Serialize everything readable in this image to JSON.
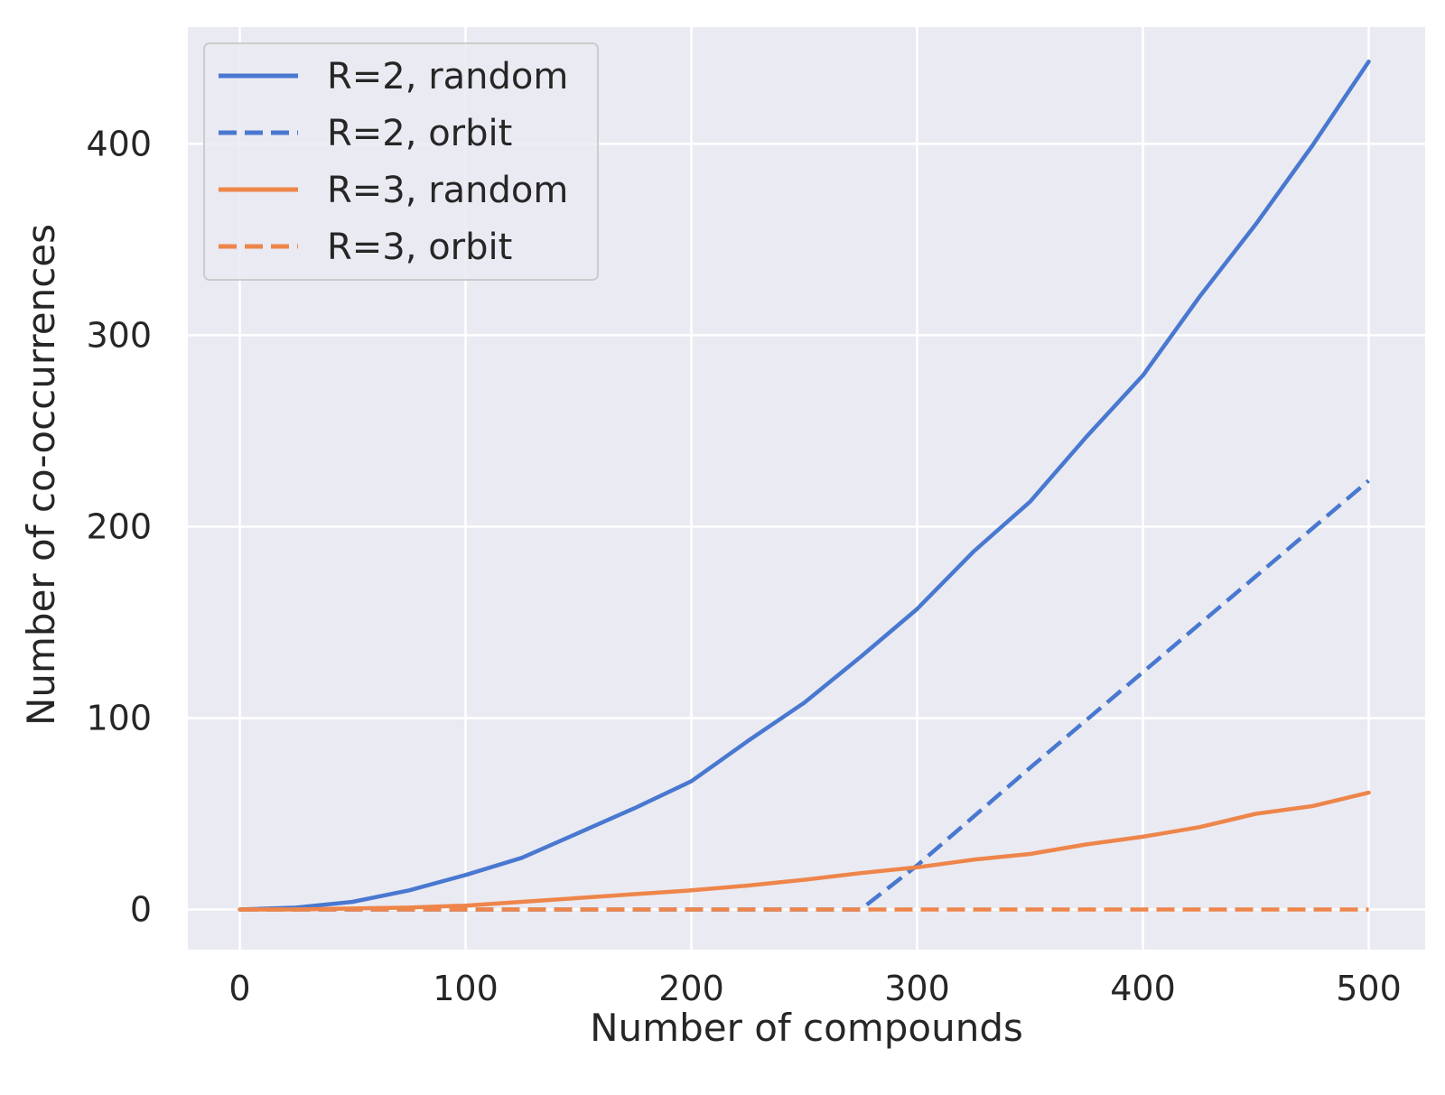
{
  "chart_data": {
    "type": "line",
    "xlabel": "Number of compounds",
    "ylabel": "Number of co-occurrences",
    "xlim": [
      -23,
      525
    ],
    "ylim": [
      -21,
      461
    ],
    "xticks": [
      0,
      100,
      200,
      300,
      400,
      500
    ],
    "yticks": [
      0,
      100,
      200,
      300,
      400
    ],
    "grid": true,
    "legend_position": "top-left",
    "colors": {
      "background": "#eaeaf2",
      "grid": "#ffffff",
      "blue": "#4878d0",
      "orange": "#ee854a"
    },
    "series": [
      {
        "name": "R=2, random",
        "color": "#4878d0",
        "dash": "solid",
        "x": [
          0,
          25,
          50,
          75,
          100,
          125,
          150,
          175,
          200,
          225,
          250,
          275,
          300,
          325,
          350,
          375,
          400,
          425,
          450,
          475,
          500
        ],
        "y": [
          0,
          1,
          4,
          10,
          18,
          27,
          40,
          53,
          67,
          88,
          108,
          132,
          157,
          187,
          213,
          247,
          279,
          320,
          358,
          399,
          443
        ]
      },
      {
        "name": "R=2, orbit",
        "color": "#4878d0",
        "dash": "dashed",
        "x": [
          0,
          275,
          300,
          350,
          400,
          450,
          500
        ],
        "y": [
          0,
          0,
          23,
          74,
          124,
          174,
          224
        ]
      },
      {
        "name": "R=3, random",
        "color": "#ee854a",
        "dash": "solid",
        "x": [
          0,
          25,
          50,
          75,
          100,
          125,
          150,
          175,
          200,
          225,
          250,
          275,
          300,
          325,
          350,
          375,
          400,
          425,
          450,
          475,
          500
        ],
        "y": [
          0,
          0,
          0.5,
          1,
          2,
          4,
          6,
          8,
          10,
          12.5,
          15.5,
          19,
          22,
          26,
          29,
          34,
          38,
          43,
          50,
          54,
          61
        ]
      },
      {
        "name": "R=3, orbit",
        "color": "#ee854a",
        "dash": "dashed",
        "x": [
          0,
          500
        ],
        "y": [
          0,
          0
        ]
      }
    ]
  }
}
